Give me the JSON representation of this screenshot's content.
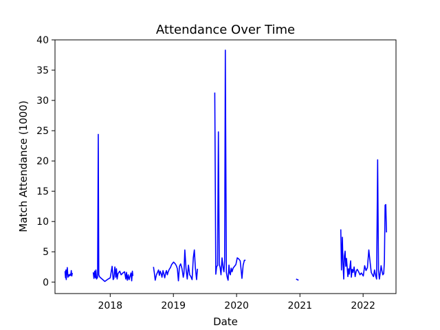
{
  "chart_data": {
    "type": "line",
    "title": "Attendance Over Time",
    "xlabel": "Date",
    "ylabel": "Match Attendance (1000)",
    "xlim": [
      "2017-02-16",
      "2022-07-10"
    ],
    "ylim": [
      -1.9,
      40
    ],
    "x_ticks": [
      "2018-01-01",
      "2019-01-01",
      "2020-01-01",
      "2021-01-01",
      "2022-01-01"
    ],
    "x_tick_labels": [
      "2018",
      "2019",
      "2020",
      "2021",
      "2022"
    ],
    "y_ticks": [
      0,
      5,
      10,
      15,
      20,
      25,
      30,
      35,
      40
    ],
    "y_tick_labels": [
      "0",
      "5",
      "10",
      "15",
      "20",
      "25",
      "30",
      "35",
      "40"
    ],
    "grid": false,
    "series": [
      {
        "color": "#0000ff",
        "segments": [
          {
            "x": [
              "2017-04-15",
              "2017-04-18",
              "2017-04-20",
              "2017-04-22",
              "2017-04-25",
              "2017-04-28",
              "2017-05-02",
              "2017-05-06",
              "2017-05-10",
              "2017-05-14",
              "2017-05-18",
              "2017-05-21",
              "2017-05-24",
              "2017-05-27"
            ],
            "y": [
              1.8,
              0.7,
              2.0,
              0.4,
              1.6,
              2.4,
              0.8,
              1.2,
              1.0,
              1.3,
              1.1,
              1.9,
              1.0,
              1.5
            ]
          },
          {
            "x": [
              "2017-09-25",
              "2017-09-29",
              "2017-10-03",
              "2017-10-07",
              "2017-10-10",
              "2017-10-14",
              "2017-10-20",
              "2017-10-24",
              "2017-10-27",
              "2017-10-31",
              "2017-11-03",
              "2017-11-15",
              "2017-12-01",
              "2017-12-15",
              "2018-01-01",
              "2018-01-12",
              "2018-01-18",
              "2018-01-22",
              "2018-01-28",
              "2018-02-02",
              "2018-02-06",
              "2018-02-10",
              "2018-02-15",
              "2018-02-20",
              "2018-02-25",
              "2018-03-05",
              "2018-03-15",
              "2018-03-25",
              "2018-04-01",
              "2018-04-05",
              "2018-04-10",
              "2018-04-15",
              "2018-04-20",
              "2018-04-25",
              "2018-05-01",
              "2018-05-05",
              "2018-05-09",
              "2018-05-12"
            ],
            "y": [
              1.6,
              0.6,
              1.8,
              0.7,
              2.0,
              0.5,
              0.8,
              24.4,
              1.2,
              0.9,
              0.8,
              0.5,
              0.1,
              0.4,
              0.7,
              2.6,
              0.4,
              0.6,
              2.5,
              0.8,
              2.2,
              0.5,
              1.4,
              1.6,
              1.8,
              1.2,
              1.5,
              1.7,
              0.5,
              1.6,
              0.3,
              1.2,
              0.4,
              0.9,
              1.5,
              0.2,
              1.8,
              1.0
            ]
          },
          {
            "x": [
              "2018-09-08",
              "2018-09-13",
              "2018-09-18",
              "2018-09-25",
              "2018-10-01",
              "2018-10-07",
              "2018-10-12",
              "2018-10-17",
              "2018-10-22",
              "2018-10-27",
              "2018-11-02",
              "2018-11-07",
              "2018-11-12",
              "2018-11-17",
              "2018-11-22",
              "2018-11-27",
              "2018-12-02",
              "2018-12-08",
              "2018-12-15",
              "2018-12-22",
              "2019-01-02",
              "2019-01-12",
              "2019-01-18",
              "2019-01-24",
              "2019-01-30",
              "2019-02-05",
              "2019-02-12",
              "2019-02-19",
              "2019-02-23",
              "2019-02-27",
              "2019-03-03",
              "2019-03-08",
              "2019-03-15",
              "2019-03-22",
              "2019-03-29",
              "2019-04-05",
              "2019-04-12",
              "2019-04-19",
              "2019-04-26",
              "2019-05-02",
              "2019-05-08",
              "2019-05-15",
              "2019-05-20"
            ],
            "y": [
              2.5,
              1.5,
              0.3,
              1.2,
              1.6,
              2.0,
              1.1,
              1.8,
              1.4,
              0.8,
              1.9,
              1.3,
              0.7,
              1.5,
              1.9,
              1.2,
              1.7,
              2.1,
              2.4,
              2.9,
              3.3,
              3.0,
              2.7,
              2.2,
              0.2,
              2.6,
              3.0,
              2.3,
              1.6,
              0.8,
              1.4,
              5.3,
              2.2,
              0.5,
              2.8,
              1.2,
              0.9,
              0.4,
              4.0,
              5.3,
              2.3,
              0.4,
              2.2
            ]
          },
          {
            "x": [
              "2019-08-28",
              "2019-09-03",
              "2019-09-08",
              "2019-09-13",
              "2019-09-18",
              "2019-09-23",
              "2019-09-28",
              "2019-10-03",
              "2019-10-09",
              "2019-10-15",
              "2019-10-20",
              "2019-10-24",
              "2019-10-28",
              "2019-11-03",
              "2019-11-08",
              "2019-11-13",
              "2019-11-18",
              "2019-11-22",
              "2019-11-26",
              "2019-12-01",
              "2019-12-06",
              "2019-12-12",
              "2019-12-20",
              "2019-12-28",
              "2020-01-05",
              "2020-01-14",
              "2020-01-22",
              "2020-02-01",
              "2020-02-08",
              "2020-02-15",
              "2020-02-22"
            ],
            "y": [
              31.3,
              1.3,
              2.6,
              2.7,
              24.8,
              2.9,
              2.4,
              1.2,
              4.0,
              2.4,
              1.7,
              3.5,
              38.3,
              1.6,
              0.8,
              0.3,
              2.8,
              1.5,
              1.2,
              2.3,
              1.7,
              2.3,
              2.6,
              2.9,
              4.0,
              3.8,
              3.5,
              0.6,
              2.8,
              3.6,
              3.6
            ]
          },
          {
            "x": [
              "2020-12-10",
              "2020-12-24"
            ],
            "y": [
              0.5,
              0.3
            ]
          },
          {
            "x": [
              "2021-08-25",
              "2021-08-29",
              "2021-09-03",
              "2021-09-07",
              "2021-09-11",
              "2021-09-15",
              "2021-09-19",
              "2021-09-23",
              "2021-09-27",
              "2021-10-01",
              "2021-10-05",
              "2021-10-09",
              "2021-10-13",
              "2021-10-17",
              "2021-10-21",
              "2021-10-25",
              "2021-10-30",
              "2021-11-04",
              "2021-11-10",
              "2021-11-16",
              "2021-11-22",
              "2021-11-28",
              "2021-12-06",
              "2021-12-14",
              "2021-12-22",
              "2022-01-02",
              "2022-01-10",
              "2022-01-18",
              "2022-01-26",
              "2022-02-03",
              "2022-02-10",
              "2022-02-17",
              "2022-02-24",
              "2022-03-02",
              "2022-03-08",
              "2022-03-14",
              "2022-03-20",
              "2022-03-26",
              "2022-03-31",
              "2022-04-05",
              "2022-04-10",
              "2022-04-15",
              "2022-04-20",
              "2022-04-25",
              "2022-04-30",
              "2022-05-04",
              "2022-05-08",
              "2022-05-12",
              "2022-05-16"
            ],
            "y": [
              8.7,
              2.0,
              7.4,
              3.1,
              0.5,
              4.3,
              5.1,
              2.6,
              3.9,
              2.4,
              0.9,
              2.2,
              1.3,
              2.5,
              3.5,
              0.8,
              2.1,
              1.6,
              2.5,
              0.9,
              1.8,
              2.1,
              1.7,
              1.2,
              1.5,
              1.0,
              2.7,
              1.9,
              2.4,
              5.3,
              3.4,
              1.6,
              1.2,
              0.9,
              2.0,
              1.1,
              0.5,
              20.2,
              1.9,
              0.5,
              1.5,
              2.7,
              1.8,
              1.2,
              1.4,
              3.4,
              12.7,
              12.8,
              8.2
            ]
          }
        ]
      }
    ]
  }
}
